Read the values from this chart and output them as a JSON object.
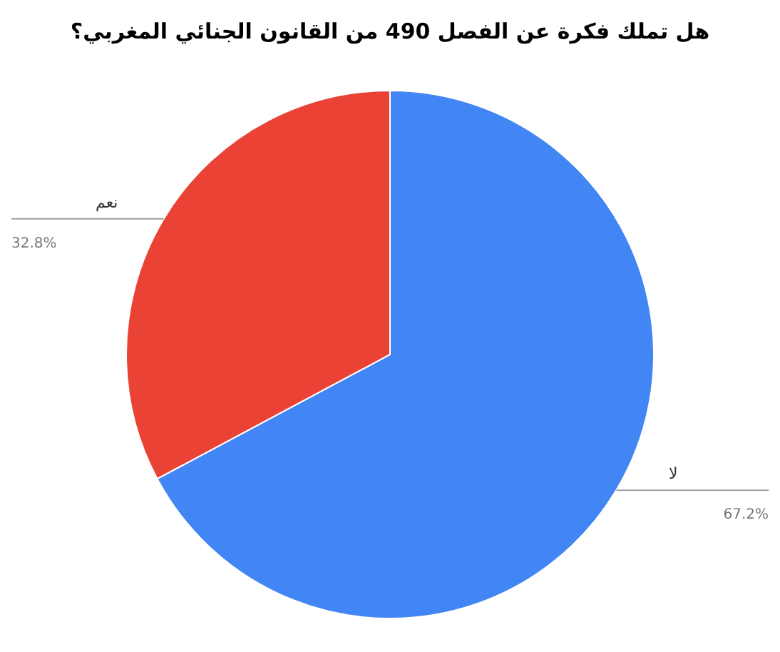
{
  "chart_data": {
    "type": "pie",
    "title": "هل تملك فكرة عن الفصل 490 من القانون الجنائي المغربي؟",
    "categories": [
      "لا",
      "نعم"
    ],
    "values": [
      67.2,
      32.8
    ],
    "colors": [
      "#4285f4",
      "#ea4335"
    ],
    "value_labels": [
      "67.2%",
      "32.8%"
    ],
    "legend": false
  }
}
